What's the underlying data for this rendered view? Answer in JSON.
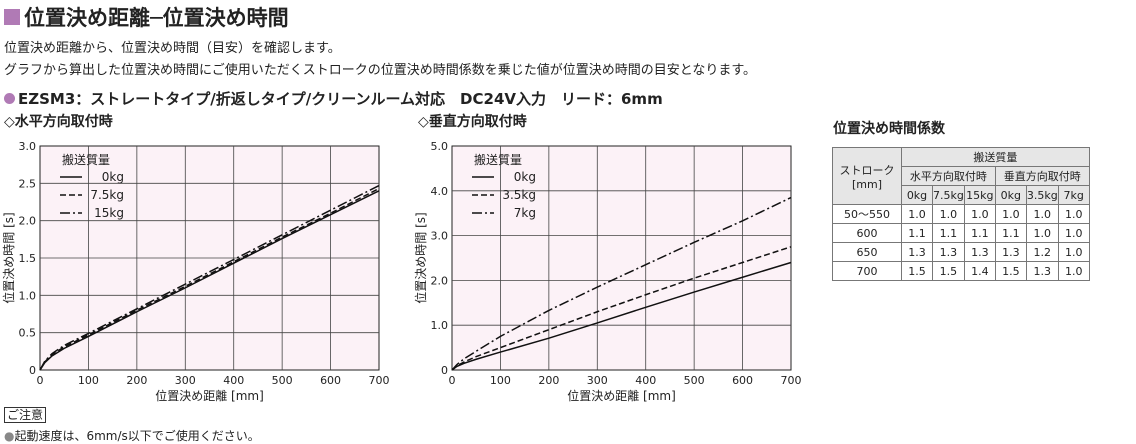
{
  "title": "位置決め距離─位置決め時間",
  "description": [
    "位置決め距離から、位置決め時間（目安）を確認します。",
    "グラフから算出した位置決め時間にご使用いただくストロークの位置決め時間係数を乗じた値が位置決め時間の目安となります。"
  ],
  "model": {
    "bullet": "●",
    "name": "EZSM3",
    "spec": "：ストレートタイプ/折返しタイプ/クリーンルーム対応　DC24V入力　リード：6mm"
  },
  "chart_data": [
    {
      "type": "line",
      "title": "◇水平方向取付時",
      "xlabel": "位置決め距離 [mm]",
      "ylabel": "位置決め時間 [s]",
      "xlim": [
        0,
        700
      ],
      "ylim": [
        0,
        3.0
      ],
      "xticks": [
        0,
        100,
        200,
        300,
        400,
        500,
        600,
        700
      ],
      "yticks": [
        0,
        0.5,
        1.0,
        1.5,
        2.0,
        2.5,
        3.0
      ],
      "ytick_labels": [
        "0",
        "0.5",
        "1.0",
        "1.5",
        "2.0",
        "2.5",
        "3.0"
      ],
      "legend_title": "搬送質量",
      "legend_position": "top-left",
      "grid": true,
      "background": "#fcf2f7",
      "series": [
        {
          "name": "0kg",
          "style": "solid",
          "x": [
            0,
            10,
            25,
            50,
            100,
            200,
            300,
            400,
            500,
            600,
            700
          ],
          "y": [
            0,
            0.1,
            0.19,
            0.29,
            0.45,
            0.78,
            1.1,
            1.43,
            1.76,
            2.08,
            2.4
          ]
        },
        {
          "name": "7.5kg",
          "style": "dashed",
          "x": [
            0,
            10,
            25,
            50,
            100,
            200,
            300,
            400,
            500,
            600,
            700
          ],
          "y": [
            0,
            0.11,
            0.21,
            0.31,
            0.47,
            0.8,
            1.12,
            1.45,
            1.78,
            2.1,
            2.43
          ]
        },
        {
          "name": "15kg",
          "style": "dashdot",
          "x": [
            0,
            10,
            25,
            50,
            100,
            200,
            300,
            400,
            500,
            600,
            700
          ],
          "y": [
            0,
            0.12,
            0.22,
            0.33,
            0.49,
            0.82,
            1.15,
            1.48,
            1.81,
            2.14,
            2.47
          ]
        }
      ]
    },
    {
      "type": "line",
      "title": "◇垂直方向取付時",
      "xlabel": "位置決め距離 [mm]",
      "ylabel": "位置決め時間 [s]",
      "xlim": [
        0,
        700
      ],
      "ylim": [
        0,
        5.0
      ],
      "xticks": [
        0,
        100,
        200,
        300,
        400,
        500,
        600,
        700
      ],
      "yticks": [
        0,
        1.0,
        2.0,
        3.0,
        4.0,
        5.0
      ],
      "ytick_labels": [
        "0",
        "1.0",
        "2.0",
        "3.0",
        "4.0",
        "5.0"
      ],
      "legend_title": "搬送質量",
      "legend_position": "top-left",
      "grid": true,
      "background": "#fcf2f7",
      "series": [
        {
          "name": "0kg",
          "style": "solid",
          "x": [
            0,
            10,
            25,
            50,
            100,
            200,
            300,
            400,
            500,
            600,
            700
          ],
          "y": [
            0,
            0.08,
            0.15,
            0.24,
            0.4,
            0.71,
            1.05,
            1.4,
            1.74,
            2.07,
            2.4
          ]
        },
        {
          "name": "3.5kg",
          "style": "dashed",
          "x": [
            0,
            10,
            25,
            50,
            100,
            200,
            300,
            400,
            500,
            600,
            700
          ],
          "y": [
            0,
            0.09,
            0.18,
            0.3,
            0.5,
            0.9,
            1.3,
            1.68,
            2.05,
            2.4,
            2.75
          ]
        },
        {
          "name": "7kg",
          "style": "dashdot",
          "x": [
            0,
            10,
            25,
            50,
            100,
            200,
            300,
            400,
            500,
            600,
            700
          ],
          "y": [
            0,
            0.12,
            0.25,
            0.42,
            0.75,
            1.33,
            1.85,
            2.35,
            2.85,
            3.33,
            3.85
          ]
        }
      ]
    }
  ],
  "coef_table": {
    "title": "位置決め時間係数",
    "stroke_header": [
      "ストローク",
      "[mm]"
    ],
    "mass_header": "搬送質量",
    "group_headers": [
      "水平方向取付時",
      "垂直方向取付時"
    ],
    "sub_headers": [
      "0kg",
      "7.5kg",
      "15kg",
      "0kg",
      "3.5kg",
      "7kg"
    ],
    "rows": [
      {
        "stroke": "50～550",
        "values": [
          "1.0",
          "1.0",
          "1.0",
          "1.0",
          "1.0",
          "1.0"
        ]
      },
      {
        "stroke": "600",
        "values": [
          "1.1",
          "1.1",
          "1.1",
          "1.1",
          "1.0",
          "1.0"
        ]
      },
      {
        "stroke": "650",
        "values": [
          "1.3",
          "1.3",
          "1.3",
          "1.3",
          "1.2",
          "1.0"
        ]
      },
      {
        "stroke": "700",
        "values": [
          "1.5",
          "1.5",
          "1.4",
          "1.5",
          "1.3",
          "1.0"
        ]
      }
    ]
  },
  "note": {
    "label": "ご注意",
    "bullet": "●",
    "text": "起動速度は、6mm/s以下でご使用ください。"
  },
  "colors": {
    "accent": "#b07ab5",
    "plot_bg": "#fcf2f7",
    "header_bg": "#e6e6e6"
  }
}
